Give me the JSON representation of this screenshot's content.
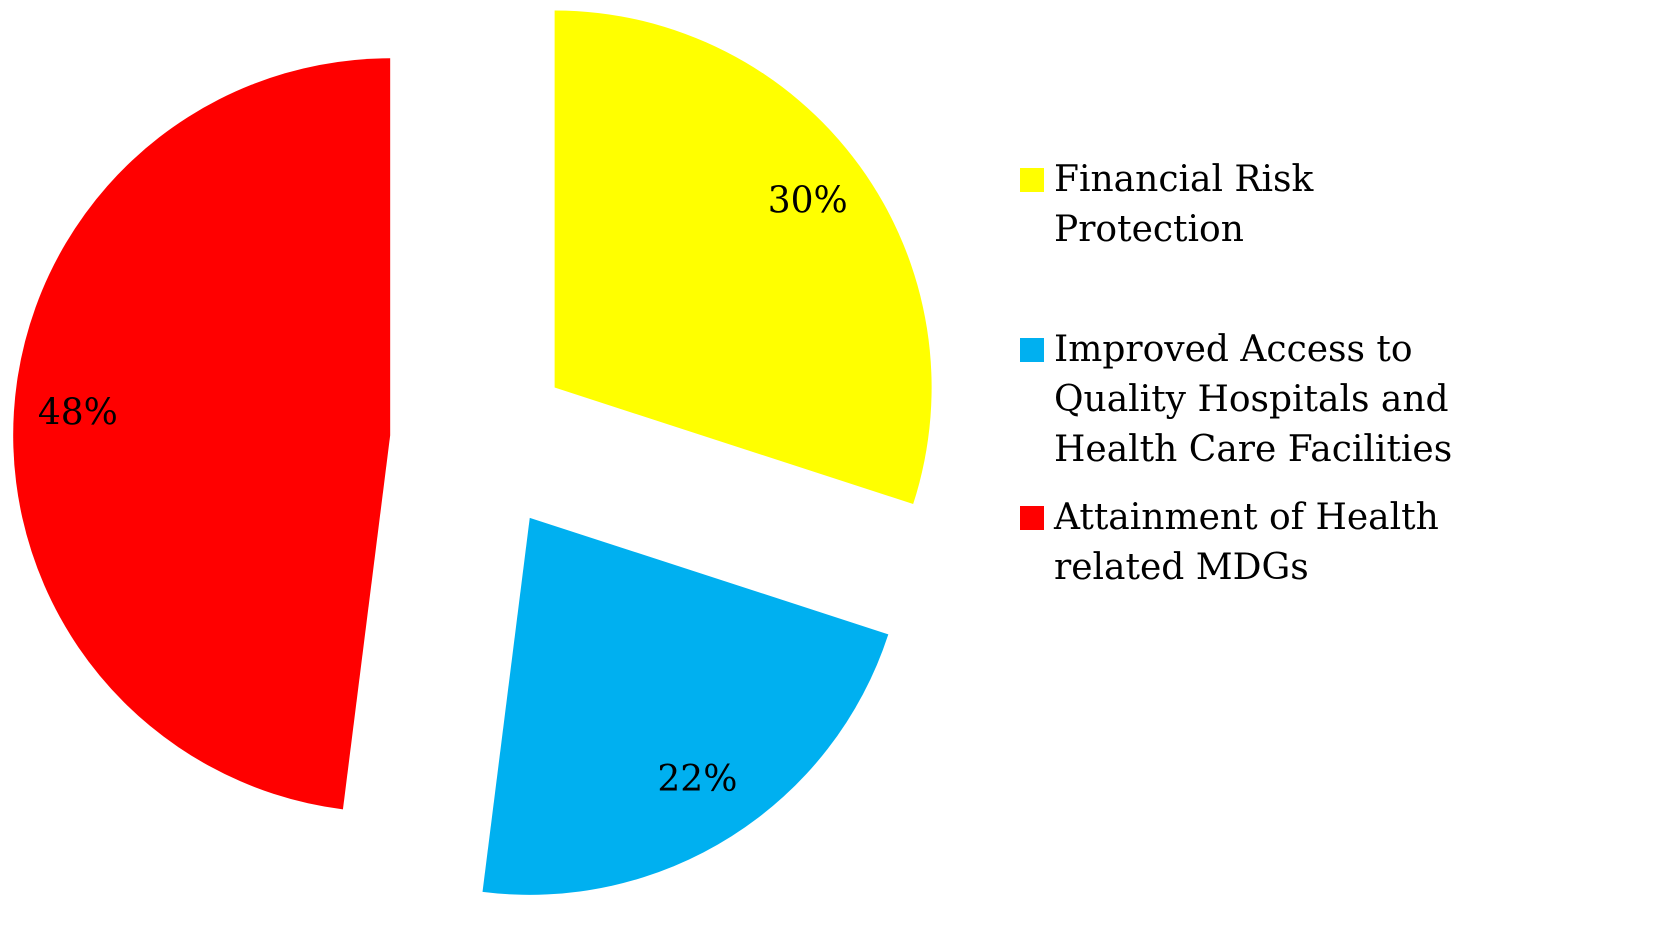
{
  "chart_data": {
    "type": "pie",
    "categories": [
      "Financial Risk Protection",
      "Improved Access to Quality Hospitals and Health Care Facilities",
      "Attainment of Health related MDGs"
    ],
    "values": [
      30,
      22,
      48
    ],
    "value_labels": [
      "30%",
      "22%",
      "48%"
    ],
    "colors": [
      "#ffff00",
      "#00b0f0",
      "#ff0000"
    ],
    "legend": "right"
  }
}
